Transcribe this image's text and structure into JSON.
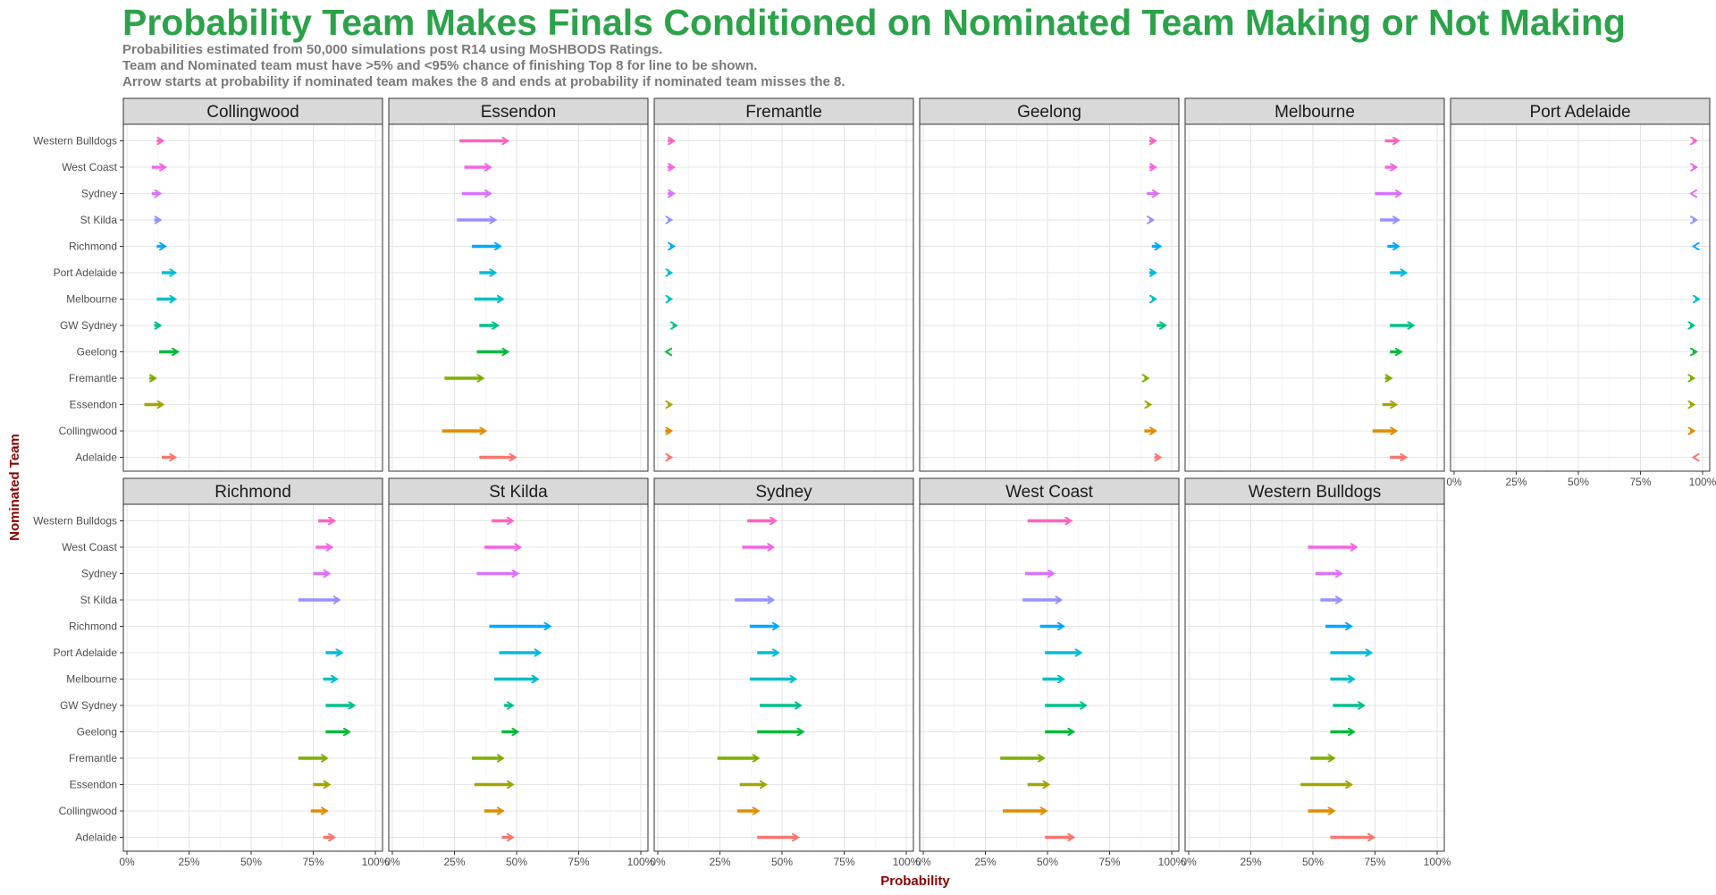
{
  "chart_data": {
    "type": "arrow-dumbbell-facets",
    "title": "Probability Team Makes Finals Conditioned on Nominated Team Making or Not Making",
    "subtitle_lines": [
      "Probabilities estimated from 50,000 simulations post R14 using MoSHBODS Ratings.",
      "Team and Nominated team must have >5% and <95% chance of finishing Top 8 for line to be shown.",
      "Arrow starts at probability if nominated team makes the 8 and ends at probability if nominated team misses the 8."
    ],
    "xlabel": "Probability",
    "ylabel": "Nominated Team",
    "xlim": [
      0,
      1
    ],
    "x_ticks": [
      "0%",
      "25%",
      "50%",
      "75%",
      "100%"
    ],
    "grid": true,
    "nominated_teams": [
      "Western Bulldogs",
      "West Coast",
      "Sydney",
      "St Kilda",
      "Richmond",
      "Port Adelaide",
      "Melbourne",
      "GW Sydney",
      "Geelong",
      "Fremantle",
      "Essendon",
      "Collingwood",
      "Adelaide"
    ],
    "colors": {
      "Western Bulldogs": "#ff61c3",
      "West Coast": "#f564e3",
      "Sydney": "#db72fb",
      "St Kilda": "#9590ff",
      "Richmond": "#00a9ff",
      "Port Adelaide": "#00bcd8",
      "Melbourne": "#00bfc4",
      "GW Sydney": "#00c08b",
      "Geelong": "#00ba38",
      "Fremantle": "#7cae00",
      "Essendon": "#a3a500",
      "Collingwood": "#de8c00",
      "Adelaide": "#f8766d"
    },
    "facets": [
      {
        "team": "Collingwood",
        "arrows": [
          [
            0.12,
            0.15
          ],
          [
            0.1,
            0.16
          ],
          [
            0.1,
            0.14
          ],
          [
            0.11,
            0.14
          ],
          [
            0.12,
            0.16
          ],
          [
            0.14,
            0.2
          ],
          [
            0.12,
            0.2
          ],
          [
            0.11,
            0.14
          ],
          [
            0.13,
            0.21
          ],
          [
            0.09,
            0.12
          ],
          [
            0.07,
            0.15
          ],
          null,
          [
            0.14,
            0.2
          ]
        ]
      },
      {
        "team": "Essendon",
        "arrows": [
          [
            0.27,
            0.47
          ],
          [
            0.29,
            0.4
          ],
          [
            0.28,
            0.4
          ],
          [
            0.26,
            0.42
          ],
          [
            0.32,
            0.44
          ],
          [
            0.35,
            0.42
          ],
          [
            0.33,
            0.45
          ],
          [
            0.35,
            0.43
          ],
          [
            0.34,
            0.47
          ],
          [
            0.21,
            0.37
          ],
          null,
          [
            0.2,
            0.38
          ],
          [
            0.35,
            0.5
          ]
        ]
      },
      {
        "team": "Fremantle",
        "arrows": [
          [
            0.04,
            0.07
          ],
          [
            0.04,
            0.07
          ],
          [
            0.04,
            0.07
          ],
          [
            0.04,
            0.06
          ],
          [
            0.05,
            0.07
          ],
          [
            0.04,
            0.06
          ],
          [
            0.04,
            0.06
          ],
          [
            0.06,
            0.08
          ],
          [
            0.04,
            0.05
          ],
          null,
          [
            0.04,
            0.06
          ],
          [
            0.03,
            0.06
          ],
          [
            0.04,
            0.06
          ]
        ]
      },
      {
        "team": "Geelong",
        "arrows": [
          [
            0.91,
            0.94
          ],
          [
            0.91,
            0.94
          ],
          [
            0.9,
            0.95
          ],
          [
            0.91,
            0.93
          ],
          [
            0.92,
            0.96
          ],
          [
            0.91,
            0.94
          ],
          [
            0.92,
            0.94
          ],
          [
            0.94,
            0.98
          ],
          null,
          [
            0.89,
            0.91
          ],
          [
            0.9,
            0.92
          ],
          [
            0.89,
            0.94
          ],
          [
            0.93,
            0.96
          ]
        ]
      },
      {
        "team": "Melbourne",
        "arrows": [
          [
            0.79,
            0.85
          ],
          [
            0.79,
            0.84
          ],
          [
            0.75,
            0.86
          ],
          [
            0.77,
            0.85
          ],
          [
            0.8,
            0.85
          ],
          [
            0.81,
            0.88
          ],
          null,
          [
            0.81,
            0.91
          ],
          [
            0.81,
            0.86
          ],
          [
            0.79,
            0.82
          ],
          [
            0.78,
            0.84
          ],
          [
            0.74,
            0.84
          ],
          [
            0.81,
            0.88
          ]
        ]
      },
      {
        "team": "Port Adelaide",
        "arrows": [
          [
            0.96,
            0.98
          ],
          [
            0.96,
            0.98
          ],
          [
            0.96,
            0.97
          ],
          [
            0.96,
            0.98
          ],
          [
            0.97,
            0.98
          ],
          null,
          [
            0.97,
            0.99
          ],
          [
            0.95,
            0.97
          ],
          [
            0.96,
            0.98
          ],
          [
            0.95,
            0.97
          ],
          [
            0.95,
            0.97
          ],
          [
            0.95,
            0.97
          ],
          [
            0.97,
            0.98
          ]
        ]
      },
      {
        "team": "Richmond",
        "arrows": [
          [
            0.77,
            0.84
          ],
          [
            0.76,
            0.83
          ],
          [
            0.75,
            0.82
          ],
          [
            0.69,
            0.86
          ],
          null,
          [
            0.8,
            0.87
          ],
          [
            0.79,
            0.85
          ],
          [
            0.8,
            0.92
          ],
          [
            0.8,
            0.9
          ],
          [
            0.69,
            0.81
          ],
          [
            0.75,
            0.82
          ],
          [
            0.74,
            0.81
          ],
          [
            0.79,
            0.84
          ]
        ]
      },
      {
        "team": "St Kilda",
        "arrows": [
          [
            0.4,
            0.49
          ],
          [
            0.37,
            0.52
          ],
          [
            0.34,
            0.51
          ],
          null,
          [
            0.39,
            0.64
          ],
          [
            0.43,
            0.6
          ],
          [
            0.41,
            0.59
          ],
          [
            0.45,
            0.49
          ],
          [
            0.44,
            0.51
          ],
          [
            0.32,
            0.45
          ],
          [
            0.33,
            0.49
          ],
          [
            0.37,
            0.45
          ],
          [
            0.44,
            0.49
          ]
        ]
      },
      {
        "team": "Sydney",
        "arrows": [
          [
            0.36,
            0.48
          ],
          [
            0.34,
            0.47
          ],
          null,
          [
            0.31,
            0.47
          ],
          [
            0.37,
            0.49
          ],
          [
            0.4,
            0.49
          ],
          [
            0.37,
            0.56
          ],
          [
            0.41,
            0.58
          ],
          [
            0.4,
            0.59
          ],
          [
            0.24,
            0.41
          ],
          [
            0.33,
            0.44
          ],
          [
            0.32,
            0.41
          ],
          [
            0.4,
            0.57
          ]
        ]
      },
      {
        "team": "West Coast",
        "arrows": [
          [
            0.42,
            0.6
          ],
          null,
          [
            0.41,
            0.53
          ],
          [
            0.4,
            0.56
          ],
          [
            0.47,
            0.57
          ],
          [
            0.49,
            0.64
          ],
          [
            0.48,
            0.57
          ],
          [
            0.49,
            0.66
          ],
          [
            0.49,
            0.61
          ],
          [
            0.31,
            0.49
          ],
          [
            0.42,
            0.51
          ],
          [
            0.32,
            0.5
          ],
          [
            0.49,
            0.61
          ]
        ]
      },
      {
        "team": "Western Bulldogs",
        "arrows": [
          null,
          [
            0.48,
            0.68
          ],
          [
            0.51,
            0.62
          ],
          [
            0.53,
            0.62
          ],
          [
            0.55,
            0.66
          ],
          [
            0.57,
            0.74
          ],
          [
            0.57,
            0.67
          ],
          [
            0.58,
            0.71
          ],
          [
            0.57,
            0.67
          ],
          [
            0.49,
            0.59
          ],
          [
            0.45,
            0.66
          ],
          [
            0.48,
            0.59
          ],
          [
            0.57,
            0.75
          ]
        ]
      }
    ]
  }
}
